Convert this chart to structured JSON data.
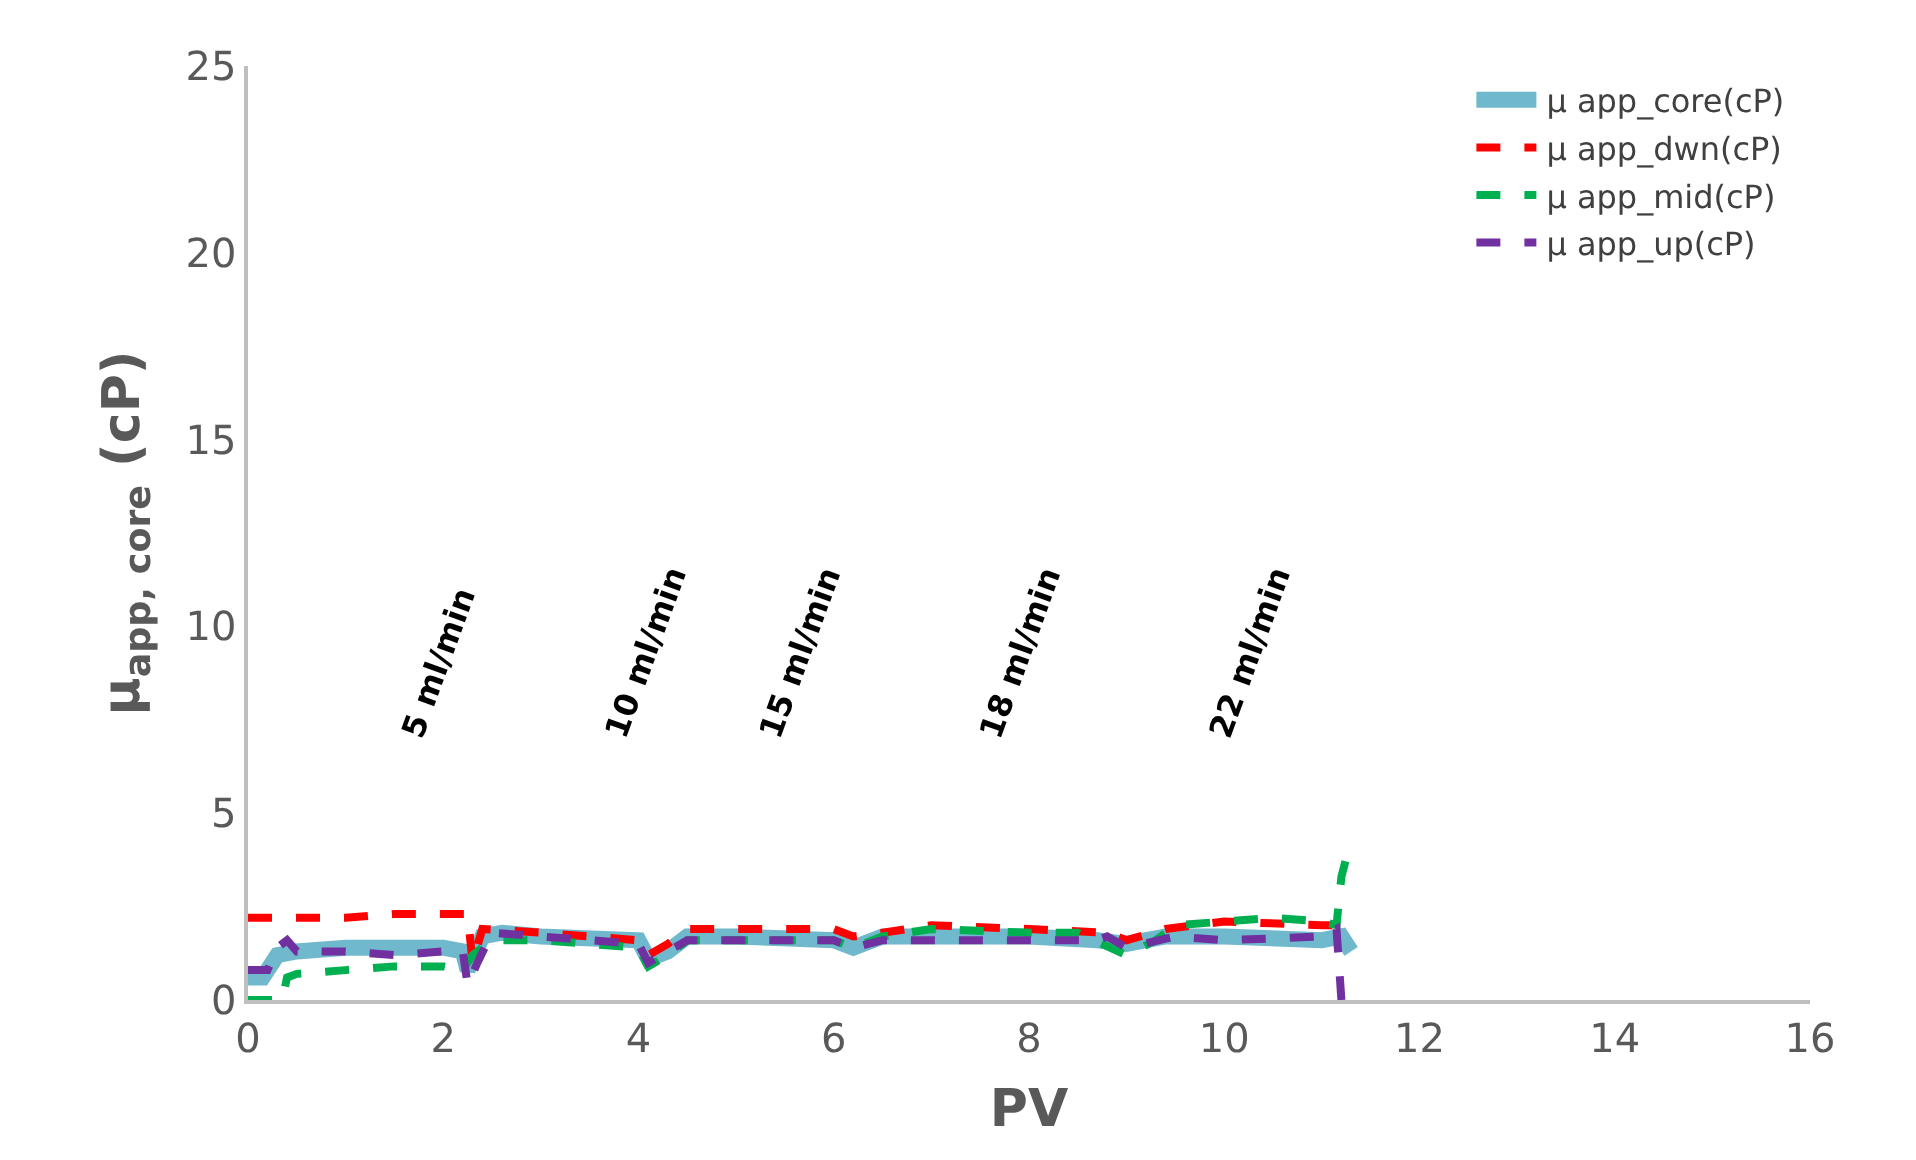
{
  "chart_data": {
    "type": "line",
    "xlabel": "PV",
    "ylabel": "μ$_{app, core}$ (cP)",
    "xlim": [
      0,
      16
    ],
    "xticks": [
      0,
      2,
      4,
      6,
      8,
      10,
      12,
      14,
      16
    ],
    "ylim": [
      0,
      25
    ],
    "yticks": [
      0,
      5,
      10,
      15,
      20,
      25
    ],
    "legend": "top right",
    "marker": "none",
    "series": [
      {
        "name": "μ app_core(cP)",
        "color": "#70b8cc",
        "line_style": "solid",
        "x": [
          0,
          0.15,
          0.3,
          0.5,
          1,
          1.5,
          2,
          2.2,
          2.25,
          2.4,
          2.6,
          3,
          4,
          4.1,
          4.3,
          4.5,
          5,
          6,
          6.2,
          6.5,
          7,
          8,
          8.7,
          9,
          9.4,
          10,
          11,
          11.2,
          11.3
        ],
        "values": [
          0.6,
          0.6,
          1.2,
          1.3,
          1.4,
          1.4,
          1.4,
          1.3,
          0.8,
          1.7,
          1.8,
          1.7,
          1.6,
          1.1,
          1.3,
          1.7,
          1.7,
          1.6,
          1.4,
          1.7,
          1.7,
          1.7,
          1.6,
          1.5,
          1.7,
          1.7,
          1.6,
          1.7,
          1.3
        ]
      },
      {
        "name": "μ app_dwn(cP)",
        "color": "#ff0000",
        "line_style": "dashed",
        "x": [
          0,
          0.5,
          1,
          1.5,
          2,
          2.25,
          2.3,
          2.4,
          3,
          4,
          4.1,
          4.3,
          4.5,
          6,
          6.2,
          6.5,
          7,
          8,
          8.8,
          9,
          9.4,
          10,
          11,
          11.15
        ],
        "values": [
          2.2,
          2.2,
          2.2,
          2.3,
          2.3,
          2.3,
          1.0,
          1.9,
          1.8,
          1.6,
          1.2,
          1.5,
          1.9,
          1.9,
          1.7,
          1.8,
          2.0,
          1.9,
          1.8,
          1.6,
          1.9,
          2.1,
          2.0,
          2.0
        ]
      },
      {
        "name": "μ app_mid(cP)",
        "color": "#00b050",
        "line_style": "dashed",
        "x": [
          0,
          0.35,
          0.4,
          0.5,
          1,
          1.5,
          2,
          2.2,
          2.3,
          2.5,
          3,
          4,
          4.1,
          4.3,
          4.5,
          6,
          6.2,
          6.5,
          7,
          8,
          8.5,
          9,
          9.3,
          9.5,
          10,
          10.5,
          11,
          11.15,
          11.2,
          11.25
        ],
        "values": [
          0,
          0,
          0.6,
          0.7,
          0.8,
          0.9,
          0.9,
          0.8,
          1.2,
          1.6,
          1.6,
          1.4,
          0.9,
          1.2,
          1.6,
          1.6,
          1.4,
          1.7,
          1.9,
          1.8,
          1.8,
          1.2,
          1.6,
          2.0,
          2.1,
          2.2,
          2.1,
          2.0,
          3.3,
          3.8
        ]
      },
      {
        "name": "μ app_up(cP)",
        "color": "#7030a0",
        "line_style": "dashed",
        "x": [
          0,
          0.2,
          0.3,
          0.4,
          0.5,
          1,
          1.5,
          2,
          2.2,
          2.25,
          2.35,
          2.5,
          3,
          4,
          4.1,
          4.3,
          4.5,
          6,
          6.2,
          6.5,
          8,
          8.7,
          8.8,
          9,
          9.5,
          10,
          11,
          11.15,
          11.2
        ],
        "values": [
          0.8,
          0.8,
          1.4,
          1.6,
          1.3,
          1.3,
          1.2,
          1.3,
          1.3,
          0.4,
          1.0,
          1.8,
          1.7,
          1.5,
          1.0,
          1.3,
          1.6,
          1.6,
          1.4,
          1.6,
          1.6,
          1.6,
          1.7,
          1.4,
          1.7,
          1.6,
          1.7,
          1.9,
          0
        ]
      }
    ],
    "annotations": [
      "5 ml/min",
      "10 ml/min",
      "15 ml/min",
      "18 ml/min",
      "22 ml/min"
    ]
  }
}
